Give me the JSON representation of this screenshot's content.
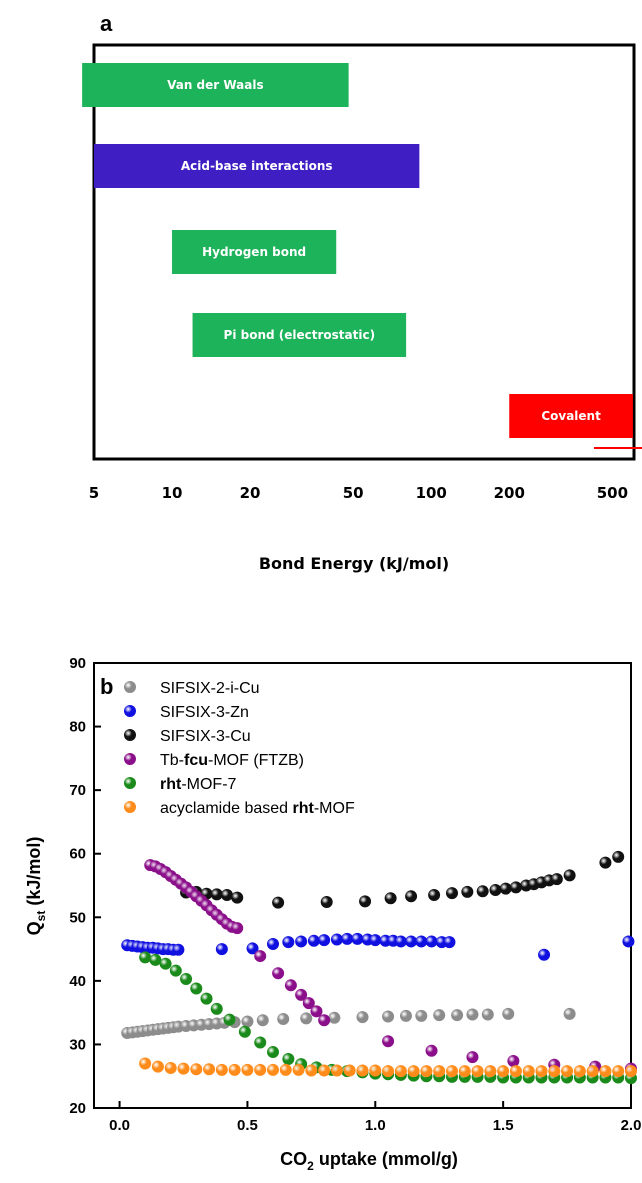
{
  "chart_data": [
    {
      "panel": "a",
      "type": "bar",
      "orientation": "horizontal-range",
      "xlabel": "Bond Energy (kJ/mol)",
      "xscale": "log",
      "xlim": [
        5,
        500
      ],
      "xticks": [
        "5",
        "10",
        "20",
        "50",
        "100",
        "200",
        "500"
      ],
      "grid": false,
      "bars": [
        {
          "label": "Van der Waals",
          "start": 4.5,
          "end": 48,
          "color": "#1db35a"
        },
        {
          "label": "Acid-base interactions",
          "start": 5,
          "end": 90,
          "color": "#3f1ec4"
        },
        {
          "label": "Hydrogen bond",
          "start": 10,
          "end": 43,
          "color": "#1db35a"
        },
        {
          "label": "Pi bond (electrostatic)",
          "start": 12,
          "end": 80,
          "color": "#1db35a"
        },
        {
          "label": "Covalent",
          "start": 200,
          "end": 600,
          "color": "#ff0000"
        }
      ]
    },
    {
      "panel": "b",
      "type": "scatter",
      "xlabel": "CO2 uptake (mmol/g)",
      "ylabel": "Qst (kJ/mol)",
      "xlim": [
        -0.1,
        2.0
      ],
      "ylim": [
        20,
        90
      ],
      "xticks": [
        "0.0",
        "0.5",
        "1.0",
        "1.5",
        "2.0"
      ],
      "yticks": [
        "20",
        "30",
        "40",
        "50",
        "60",
        "70",
        "80",
        "90"
      ],
      "grid": false,
      "legend_position": "top-left",
      "series": [
        {
          "name": "SIFSIX-2-i-Cu",
          "color": "#8c8c8c",
          "x": [
            0.03,
            0.05,
            0.07,
            0.09,
            0.11,
            0.13,
            0.15,
            0.17,
            0.19,
            0.21,
            0.23,
            0.26,
            0.29,
            0.32,
            0.35,
            0.38,
            0.41,
            0.45,
            0.5,
            0.56,
            0.64,
            0.73,
            0.84,
            0.95,
            1.05,
            1.12,
            1.18,
            1.25,
            1.32,
            1.38,
            1.44,
            1.52,
            1.76
          ],
          "y": [
            31.8,
            31.9,
            32.0,
            32.1,
            32.2,
            32.3,
            32.4,
            32.5,
            32.6,
            32.7,
            32.8,
            32.9,
            33.0,
            33.1,
            33.2,
            33.3,
            33.4,
            33.5,
            33.6,
            33.8,
            34.0,
            34.1,
            34.2,
            34.3,
            34.4,
            34.5,
            34.5,
            34.6,
            34.6,
            34.7,
            34.7,
            34.8,
            34.8
          ]
        },
        {
          "name": "SIFSIX-3-Zn",
          "color": "#1010e0",
          "x": [
            0.03,
            0.05,
            0.07,
            0.09,
            0.11,
            0.13,
            0.15,
            0.17,
            0.19,
            0.21,
            0.23,
            0.4,
            0.52,
            0.6,
            0.66,
            0.71,
            0.76,
            0.8,
            0.85,
            0.89,
            0.93,
            0.97,
            1.0,
            1.04,
            1.07,
            1.1,
            1.14,
            1.18,
            1.22,
            1.26,
            1.29,
            1.66,
            1.99
          ],
          "y": [
            45.6,
            45.5,
            45.4,
            45.3,
            45.2,
            45.2,
            45.1,
            45.0,
            45.0,
            44.9,
            44.9,
            45.0,
            45.1,
            45.8,
            46.1,
            46.2,
            46.3,
            46.4,
            46.5,
            46.6,
            46.6,
            46.5,
            46.4,
            46.3,
            46.3,
            46.2,
            46.2,
            46.2,
            46.2,
            46.1,
            46.1,
            44.1,
            46.2
          ]
        },
        {
          "name": "SIFSIX-3-Cu",
          "color": "#111111",
          "x": [
            0.26,
            0.3,
            0.34,
            0.38,
            0.42,
            0.46,
            0.62,
            0.81,
            0.96,
            1.06,
            1.14,
            1.23,
            1.3,
            1.36,
            1.42,
            1.47,
            1.51,
            1.55,
            1.59,
            1.62,
            1.65,
            1.68,
            1.71,
            1.76,
            1.9,
            1.95
          ],
          "y": [
            53.9,
            54.0,
            53.7,
            53.6,
            53.5,
            53.1,
            52.3,
            52.4,
            52.5,
            53.0,
            53.3,
            53.5,
            53.8,
            54.0,
            54.1,
            54.3,
            54.5,
            54.7,
            55.0,
            55.2,
            55.5,
            55.8,
            56.0,
            56.6,
            58.6,
            59.5
          ]
        },
        {
          "name": "Tb-fcu-MOF (FTZB)",
          "color": "#8b0f8b",
          "x": [
            0.12,
            0.14,
            0.16,
            0.18,
            0.2,
            0.22,
            0.24,
            0.26,
            0.28,
            0.3,
            0.32,
            0.34,
            0.36,
            0.38,
            0.4,
            0.42,
            0.44,
            0.46,
            0.55,
            0.62,
            0.67,
            0.71,
            0.74,
            0.77,
            0.8,
            1.05,
            1.22,
            1.38,
            1.54,
            1.7,
            1.86,
            2.0
          ],
          "y": [
            58.2,
            58.0,
            57.6,
            57.1,
            56.5,
            55.9,
            55.3,
            54.7,
            54.0,
            53.3,
            52.6,
            51.9,
            51.1,
            50.4,
            49.7,
            49.0,
            48.5,
            48.3,
            43.9,
            41.2,
            39.3,
            37.8,
            36.5,
            35.2,
            33.8,
            30.5,
            29.0,
            28.0,
            27.4,
            26.8,
            26.5,
            26.2
          ]
        },
        {
          "name": "rht-MOF-7",
          "color": "#1a8a1a",
          "x": [
            0.1,
            0.14,
            0.18,
            0.22,
            0.26,
            0.3,
            0.34,
            0.38,
            0.43,
            0.49,
            0.55,
            0.6,
            0.66,
            0.71,
            0.77,
            0.83,
            0.89,
            0.95,
            1.0,
            1.05,
            1.1,
            1.15,
            1.2,
            1.25,
            1.3,
            1.35,
            1.4,
            1.45,
            1.5,
            1.55,
            1.6,
            1.65,
            1.7,
            1.75,
            1.8,
            1.85,
            1.9,
            1.95,
            2.0
          ],
          "y": [
            43.7,
            43.3,
            42.7,
            41.6,
            40.3,
            38.8,
            37.2,
            35.6,
            33.9,
            32.0,
            30.3,
            28.8,
            27.7,
            26.9,
            26.4,
            26.0,
            25.8,
            25.6,
            25.4,
            25.3,
            25.2,
            25.1,
            25.0,
            25.0,
            24.9,
            24.9,
            24.9,
            24.9,
            24.8,
            24.8,
            24.8,
            24.8,
            24.8,
            24.8,
            24.8,
            24.8,
            24.8,
            24.8,
            24.7
          ]
        },
        {
          "name": "acyclamide based rht-MOF",
          "color": "#ff8c1a",
          "x": [
            0.1,
            0.15,
            0.2,
            0.25,
            0.3,
            0.35,
            0.4,
            0.45,
            0.5,
            0.55,
            0.6,
            0.65,
            0.7,
            0.75,
            0.8,
            0.85,
            0.9,
            0.95,
            1.0,
            1.05,
            1.1,
            1.15,
            1.2,
            1.25,
            1.3,
            1.35,
            1.4,
            1.45,
            1.5,
            1.55,
            1.6,
            1.65,
            1.7,
            1.75,
            1.8,
            1.85,
            1.9,
            1.95,
            2.0
          ],
          "y": [
            27.0,
            26.5,
            26.3,
            26.2,
            26.1,
            26.1,
            26.0,
            26.0,
            26.0,
            26.0,
            26.0,
            26.0,
            26.0,
            25.9,
            25.9,
            25.9,
            25.9,
            25.9,
            25.9,
            25.8,
            25.8,
            25.8,
            25.8,
            25.8,
            25.8,
            25.8,
            25.8,
            25.8,
            25.8,
            25.8,
            25.8,
            25.8,
            25.8,
            25.8,
            25.8,
            25.8,
            25.8,
            25.8,
            25.8
          ]
        }
      ]
    }
  ],
  "labels": {
    "panel_a": "a",
    "panel_b": "b",
    "xlabel_b_prefix": "CO",
    "xlabel_b_sub": "2",
    "xlabel_b_suffix": " uptake (mmol/g)",
    "ylabel_b_prefix": "Q",
    "ylabel_b_sub": "st",
    "ylabel_b_suffix": " (kJ/mol)"
  },
  "legend_b": [
    {
      "parts": [
        {
          "t": "SIFSIX-2-i-Cu",
          "b": false
        }
      ],
      "color": "#8c8c8c"
    },
    {
      "parts": [
        {
          "t": "SIFSIX-3-Zn",
          "b": false
        }
      ],
      "color": "#1010e0"
    },
    {
      "parts": [
        {
          "t": "SIFSIX-3-Cu",
          "b": false
        }
      ],
      "color": "#111111"
    },
    {
      "parts": [
        {
          "t": "Tb-",
          "b": false
        },
        {
          "t": "fcu",
          "b": true
        },
        {
          "t": "-MOF (FTZB)",
          "b": false
        }
      ],
      "color": "#8b0f8b"
    },
    {
      "parts": [
        {
          "t": "rht",
          "b": true
        },
        {
          "t": "-MOF-7",
          "b": false
        }
      ],
      "color": "#1a8a1a"
    },
    {
      "parts": [
        {
          "t": "acyclamide based ",
          "b": false
        },
        {
          "t": "rht",
          "b": true
        },
        {
          "t": "-MOF",
          "b": false
        }
      ],
      "color": "#ff8c1a"
    }
  ]
}
